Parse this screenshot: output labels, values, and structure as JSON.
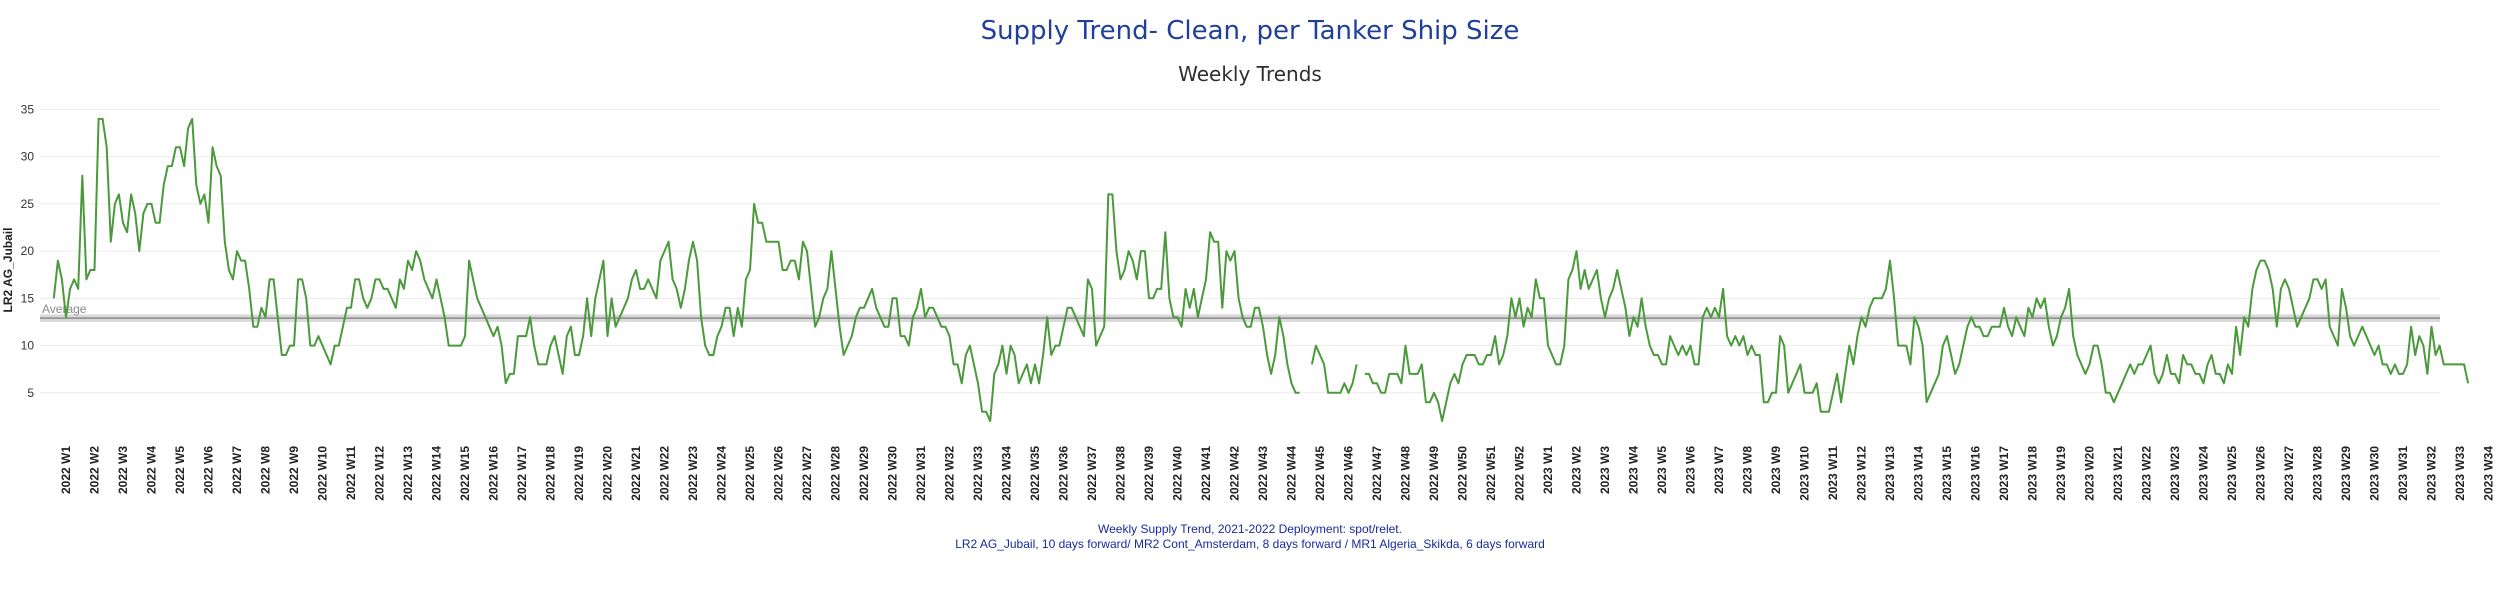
{
  "header": {
    "title": "Supply Trend- Clean, per Tanker Ship Size",
    "subtitle": "Weekly Trends"
  },
  "footer": {
    "line1": "Weekly Supply Trend, 2021-2022 Deployment: spot/relet.",
    "line2": "LR2 AG_Jubail, 10 days forward/ MR2 Cont_Amsterdam, 8 days forward / MR1 Algeria_Skikda, 6 days forward"
  },
  "colors": {
    "line": "#4a9a3c",
    "average": "#8a8a8a",
    "band": "#cfcfcf",
    "grid": "#ececec",
    "title": "#1f3f9a"
  },
  "chart_data": {
    "type": "line",
    "title": "Weekly Trends",
    "xlabel": "",
    "ylabel": "LR2 AG_Jubail",
    "ylim": [
      0,
      36
    ],
    "yticks": [
      5,
      10,
      15,
      20,
      25,
      30,
      35
    ],
    "grid": true,
    "reference_line": {
      "label": "Average",
      "value": 12.9
    },
    "categories": [
      "2022 W1",
      "2022 W2",
      "2022 W3",
      "2022 W4",
      "2022 W5",
      "2022 W6",
      "2022 W7",
      "2022 W8",
      "2022 W9",
      "2022 W10",
      "2022 W11",
      "2022 W12",
      "2022 W13",
      "2022 W14",
      "2022 W15",
      "2022 W16",
      "2022 W17",
      "2022 W18",
      "2022 W19",
      "2022 W20",
      "2022 W21",
      "2022 W22",
      "2022 W23",
      "2022 W24",
      "2022 W25",
      "2022 W26",
      "2022 W27",
      "2022 W28",
      "2022 W29",
      "2022 W30",
      "2022 W31",
      "2022 W32",
      "2022 W33",
      "2022 W34",
      "2022 W35",
      "2022 W36",
      "2022 W37",
      "2022 W38",
      "2022 W39",
      "2022 W40",
      "2022 W41",
      "2022 W42",
      "2022 W43",
      "2022 W44",
      "2022 W45",
      "2022 W46",
      "2022 W47",
      "2022 W48",
      "2022 W49",
      "2022 W50",
      "2022 W51",
      "2022 W52",
      "2023 W1",
      "2023 W2",
      "2023 W3",
      "2023 W4",
      "2023 W5",
      "2023 W6",
      "2023 W7",
      "2023 W8",
      "2023 W9",
      "2023 W10",
      "2023 W11",
      "2023 W12",
      "2023 W13",
      "2023 W14",
      "2023 W15",
      "2023 W16",
      "2023 W17",
      "2023 W18",
      "2023 W19",
      "2023 W20",
      "2023 W21",
      "2023 W22",
      "2023 W23",
      "2023 W24",
      "2023 W25",
      "2023 W26",
      "2023 W27",
      "2023 W28",
      "2023 W29",
      "2023 W30",
      "2023 W31",
      "2023 W32",
      "2023 W33",
      "2023 W34"
    ],
    "series": [
      {
        "name": "LR2 AG_Jubail",
        "daily_values": [
          [
            15,
            19,
            17,
            13,
            16,
            17,
            16
          ],
          [
            28,
            17,
            18,
            18,
            34,
            34,
            31
          ],
          [
            21,
            25,
            26,
            23,
            22,
            26,
            24
          ],
          [
            20,
            24,
            25,
            25,
            23,
            23,
            27
          ],
          [
            29,
            29,
            31,
            31,
            29,
            33,
            34
          ],
          [
            27,
            25,
            26,
            23,
            31,
            29,
            28
          ],
          [
            21,
            18,
            17,
            20,
            19,
            19,
            16
          ],
          [
            12,
            12,
            14,
            13,
            17,
            17,
            13
          ],
          [
            9,
            9,
            10,
            10,
            17,
            17,
            15
          ],
          [
            10,
            10,
            11,
            10,
            9,
            8,
            10
          ],
          [
            10,
            12,
            14,
            14,
            17,
            17,
            15
          ],
          [
            14,
            15,
            17,
            17,
            16,
            16,
            15
          ],
          [
            14,
            17,
            16,
            19,
            18,
            20,
            19
          ],
          [
            17,
            16,
            15,
            17,
            15,
            13,
            10
          ],
          [
            10,
            10,
            10,
            11,
            19,
            17,
            15
          ],
          [
            14,
            13,
            12,
            11,
            12,
            10,
            6
          ],
          [
            7,
            7,
            11,
            11,
            11,
            13,
            10
          ],
          [
            8,
            8,
            8,
            10,
            11,
            9,
            7
          ],
          [
            11,
            12,
            9,
            9,
            11,
            15,
            11
          ],
          [
            15,
            17,
            19,
            11,
            15,
            12,
            13
          ],
          [
            14,
            15,
            17,
            18,
            16,
            16,
            17
          ],
          [
            16,
            15,
            19,
            20,
            21,
            17,
            16
          ],
          [
            14,
            16,
            19,
            21,
            19,
            13,
            10
          ],
          [
            9,
            9,
            11,
            12,
            14,
            14,
            11
          ],
          [
            14,
            12,
            17,
            18,
            25,
            23,
            23
          ],
          [
            21,
            21,
            21,
            21,
            18,
            18,
            19
          ],
          [
            19,
            17,
            21,
            20,
            16,
            12,
            13
          ],
          [
            15,
            16,
            20,
            16,
            12,
            9,
            10
          ],
          [
            11,
            13,
            14,
            14,
            15,
            16,
            14
          ],
          [
            13,
            12,
            12,
            15,
            15,
            11,
            11
          ],
          [
            10,
            13,
            14,
            16,
            13,
            14,
            14
          ],
          [
            13,
            12,
            12,
            11,
            8,
            8,
            6
          ],
          [
            9,
            10,
            8,
            6,
            3,
            3,
            2
          ],
          [
            7,
            8,
            10,
            7,
            10,
            9,
            6
          ],
          [
            7,
            8,
            6,
            8,
            6,
            9,
            13
          ],
          [
            9,
            10,
            10,
            12,
            14,
            14,
            13
          ],
          [
            12,
            11,
            17,
            16,
            10,
            11,
            12
          ],
          [
            26,
            26,
            20,
            17,
            18,
            20,
            19
          ],
          [
            17,
            20,
            20,
            15,
            15,
            16,
            16
          ],
          [
            22,
            15,
            13,
            13,
            12,
            16,
            14
          ],
          [
            16,
            13,
            15,
            17,
            22,
            21,
            21
          ],
          [
            14,
            20,
            19,
            20,
            15,
            13,
            12
          ],
          [
            12,
            14,
            14,
            12,
            9,
            7,
            9
          ],
          [
            13,
            11,
            8,
            6,
            5,
            5,
            null
          ],
          [
            null,
            8,
            10,
            9,
            8,
            5,
            5
          ],
          [
            5,
            5,
            6,
            5,
            6,
            8,
            null
          ],
          [
            7,
            7,
            6,
            6,
            5,
            5,
            7
          ],
          [
            7,
            7,
            6,
            10,
            7,
            7,
            7
          ],
          [
            8,
            4,
            4,
            5,
            4,
            2,
            4
          ],
          [
            6,
            7,
            6,
            8,
            9,
            9,
            9
          ],
          [
            8,
            8,
            9,
            9,
            11,
            8,
            9
          ],
          [
            11,
            15,
            13,
            15,
            12,
            14,
            13
          ],
          [
            17,
            15,
            15,
            10,
            9,
            8,
            8
          ],
          [
            10,
            17,
            18,
            20,
            16,
            18,
            16
          ],
          [
            17,
            18,
            15,
            13,
            15,
            16,
            18
          ],
          [
            16,
            14,
            11,
            13,
            12,
            15,
            12
          ],
          [
            10,
            9,
            9,
            8,
            8,
            11,
            10
          ],
          [
            9,
            10,
            9,
            10,
            8,
            8,
            13
          ],
          [
            14,
            13,
            14,
            13,
            16,
            11,
            10
          ],
          [
            11,
            10,
            11,
            9,
            10,
            9,
            9
          ],
          [
            4,
            4,
            5,
            5,
            11,
            10,
            5
          ],
          [
            6,
            7,
            8,
            5,
            5,
            5,
            6
          ],
          [
            3,
            3,
            3,
            5,
            7,
            4,
            7
          ],
          [
            10,
            8,
            11,
            13,
            12,
            14,
            15
          ],
          [
            15,
            15,
            16,
            19,
            15,
            10,
            10
          ],
          [
            10,
            8,
            13,
            12,
            10,
            4,
            5
          ],
          [
            6,
            7,
            10,
            11,
            9,
            7,
            8
          ],
          [
            10,
            12,
            13,
            12,
            12,
            11,
            11
          ],
          [
            12,
            12,
            12,
            14,
            12,
            11,
            13
          ],
          [
            12,
            11,
            14,
            13,
            15,
            14,
            15
          ],
          [
            12,
            10,
            11,
            13,
            14,
            16,
            11
          ],
          [
            9,
            8,
            7,
            8,
            10,
            10,
            8
          ],
          [
            5,
            5,
            4,
            5,
            6,
            7,
            8
          ],
          [
            7,
            8,
            8,
            9,
            10,
            7,
            6
          ],
          [
            7,
            9,
            7,
            7,
            6,
            9,
            8
          ],
          [
            8,
            7,
            7,
            6,
            8,
            9,
            7
          ],
          [
            7,
            6,
            8,
            7,
            12,
            9,
            13
          ],
          [
            12,
            16,
            18,
            19,
            19,
            18,
            16
          ],
          [
            12,
            16,
            17,
            16,
            14,
            12,
            13
          ],
          [
            14,
            15,
            17,
            17,
            16,
            17,
            12
          ],
          [
            11,
            10,
            16,
            14,
            11,
            10,
            11
          ],
          [
            12,
            11,
            10,
            9,
            10,
            8,
            8
          ],
          [
            7,
            8,
            7,
            7,
            8,
            12,
            9
          ],
          [
            11,
            10,
            7,
            12,
            9,
            10,
            8
          ],
          [
            8,
            8,
            8,
            8,
            8,
            6,
            null
          ],
          [
            null,
            null,
            null,
            null,
            null,
            null,
            null
          ]
        ]
      }
    ]
  }
}
